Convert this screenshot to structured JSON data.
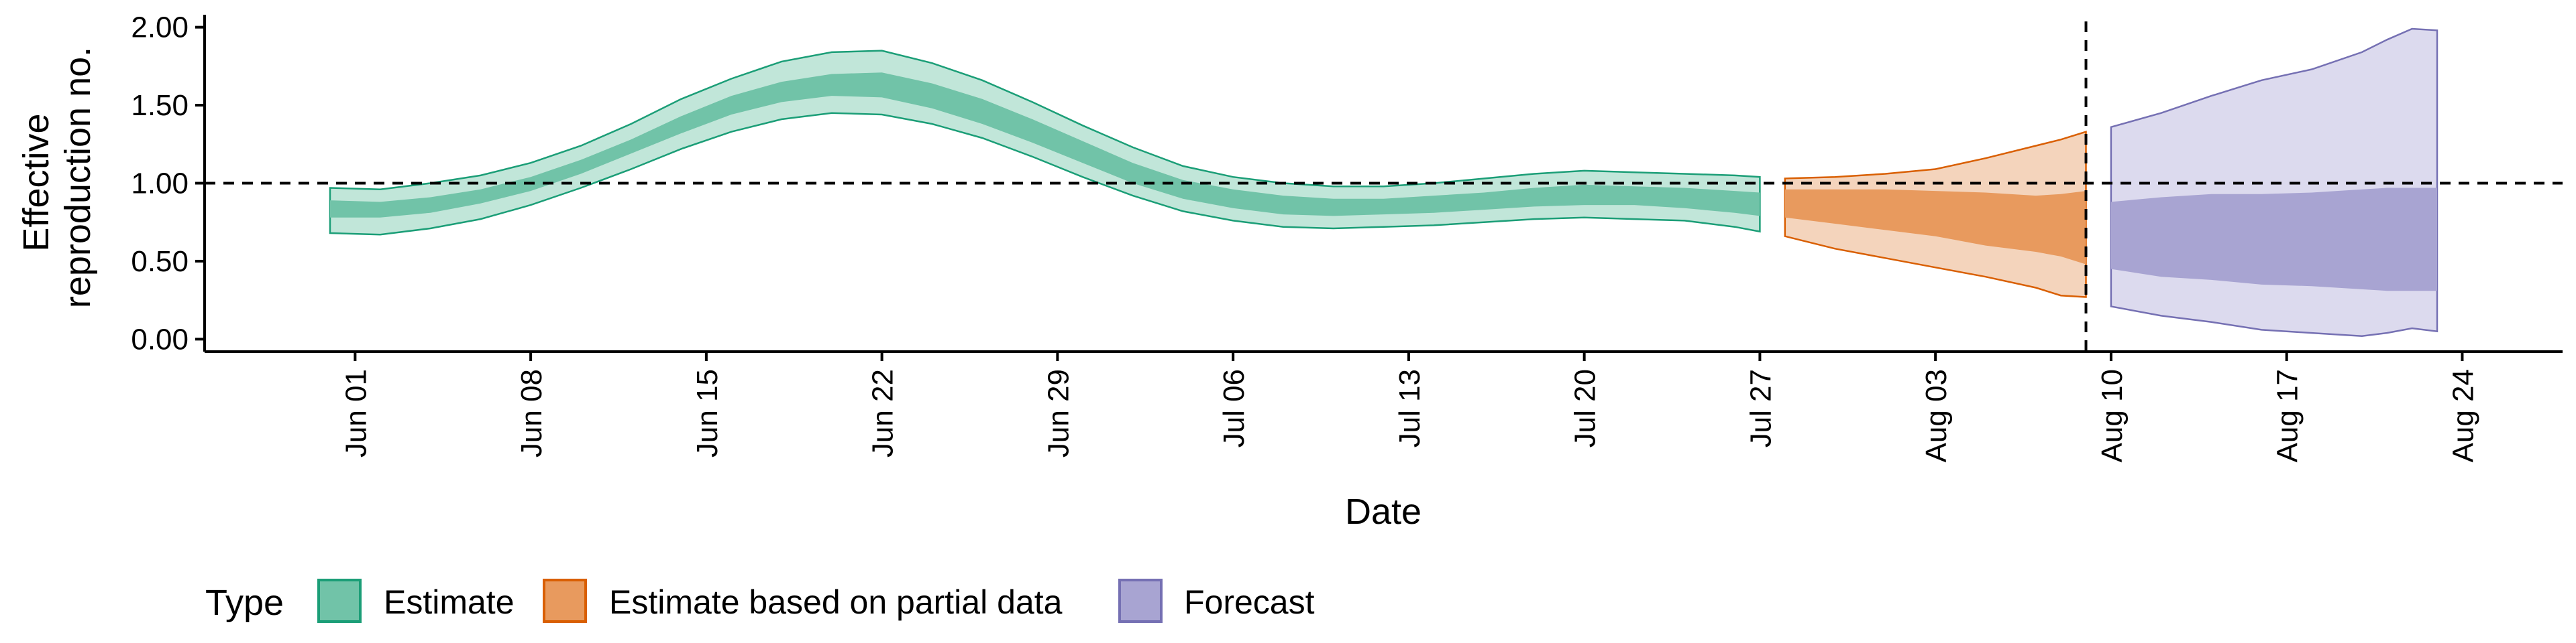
{
  "chart_data": {
    "type": "area",
    "xlabel": "Date",
    "ylabel_lines": [
      "Effective",
      "reproduction no."
    ],
    "y_ticks": [
      0.0,
      0.5,
      1.0,
      1.5,
      2.0
    ],
    "y_tick_labels": [
      "0.00",
      "0.50",
      "1.00",
      "1.50",
      "2.00"
    ],
    "ylim": [
      -0.08,
      2.08
    ],
    "x_ticks": [
      "2020-06-01",
      "2020-06-08",
      "2020-06-15",
      "2020-06-22",
      "2020-06-29",
      "2020-07-06",
      "2020-07-13",
      "2020-07-20",
      "2020-07-27",
      "2020-08-03",
      "2020-08-10",
      "2020-08-17",
      "2020-08-24"
    ],
    "x_tick_labels": [
      "Jun 01",
      "Jun 08",
      "Jun 15",
      "Jun 22",
      "Jun 29",
      "Jul 06",
      "Jul 13",
      "Jul 20",
      "Jul 27",
      "Aug 03",
      "Aug 10",
      "Aug 17",
      "Aug 24"
    ],
    "xlim": [
      "2020-05-26",
      "2020-08-28"
    ],
    "reference_line_y": 1.0,
    "vertical_line_x": "2020-08-09",
    "grid": false,
    "legend": {
      "title": "Type",
      "position": "bottom-left",
      "items": [
        {
          "label": "Estimate",
          "fill": "#71c3a8",
          "stroke": "#1b9e77"
        },
        {
          "label": "Estimate based on partial data",
          "fill": "#e89a5e",
          "stroke": "#d95f02"
        },
        {
          "label": "Forecast",
          "fill": "#a8a4d2",
          "stroke": "#7570b3"
        }
      ]
    },
    "series": [
      {
        "name": "Estimate",
        "outer_color": "#c1e6d9",
        "inner_color": "#71c3a8",
        "stroke": "#1b9e77",
        "points": [
          {
            "x": "2020-05-31",
            "outer": [
              0.68,
              0.97
            ],
            "inner": [
              0.78,
              0.89
            ]
          },
          {
            "x": "2020-06-02",
            "outer": [
              0.67,
              0.96
            ],
            "inner": [
              0.78,
              0.88
            ]
          },
          {
            "x": "2020-06-04",
            "outer": [
              0.71,
              1.0
            ],
            "inner": [
              0.81,
              0.91
            ]
          },
          {
            "x": "2020-06-06",
            "outer": [
              0.77,
              1.05
            ],
            "inner": [
              0.87,
              0.96
            ]
          },
          {
            "x": "2020-06-08",
            "outer": [
              0.86,
              1.13
            ],
            "inner": [
              0.95,
              1.04
            ]
          },
          {
            "x": "2020-06-10",
            "outer": [
              0.97,
              1.24
            ],
            "inner": [
              1.06,
              1.15
            ]
          },
          {
            "x": "2020-06-12",
            "outer": [
              1.09,
              1.38
            ],
            "inner": [
              1.19,
              1.28
            ]
          },
          {
            "x": "2020-06-14",
            "outer": [
              1.22,
              1.54
            ],
            "inner": [
              1.32,
              1.43
            ]
          },
          {
            "x": "2020-06-16",
            "outer": [
              1.33,
              1.67
            ],
            "inner": [
              1.44,
              1.56
            ]
          },
          {
            "x": "2020-06-18",
            "outer": [
              1.41,
              1.78
            ],
            "inner": [
              1.52,
              1.65
            ]
          },
          {
            "x": "2020-06-20",
            "outer": [
              1.45,
              1.84
            ],
            "inner": [
              1.56,
              1.7
            ]
          },
          {
            "x": "2020-06-22",
            "outer": [
              1.44,
              1.85
            ],
            "inner": [
              1.55,
              1.71
            ]
          },
          {
            "x": "2020-06-24",
            "outer": [
              1.38,
              1.77
            ],
            "inner": [
              1.48,
              1.64
            ]
          },
          {
            "x": "2020-06-26",
            "outer": [
              1.29,
              1.66
            ],
            "inner": [
              1.38,
              1.54
            ]
          },
          {
            "x": "2020-06-28",
            "outer": [
              1.17,
              1.52
            ],
            "inner": [
              1.26,
              1.41
            ]
          },
          {
            "x": "2020-06-30",
            "outer": [
              1.04,
              1.37
            ],
            "inner": [
              1.13,
              1.27
            ]
          },
          {
            "x": "2020-07-02",
            "outer": [
              0.92,
              1.23
            ],
            "inner": [
              1.0,
              1.13
            ]
          },
          {
            "x": "2020-07-04",
            "outer": [
              0.82,
              1.11
            ],
            "inner": [
              0.9,
              1.02
            ]
          },
          {
            "x": "2020-07-06",
            "outer": [
              0.76,
              1.04
            ],
            "inner": [
              0.84,
              0.96
            ]
          },
          {
            "x": "2020-07-08",
            "outer": [
              0.72,
              1.0
            ],
            "inner": [
              0.8,
              0.92
            ]
          },
          {
            "x": "2020-07-10",
            "outer": [
              0.71,
              0.98
            ],
            "inner": [
              0.79,
              0.9
            ]
          },
          {
            "x": "2020-07-12",
            "outer": [
              0.72,
              0.98
            ],
            "inner": [
              0.8,
              0.9
            ]
          },
          {
            "x": "2020-07-14",
            "outer": [
              0.73,
              1.0
            ],
            "inner": [
              0.81,
              0.92
            ]
          },
          {
            "x": "2020-07-16",
            "outer": [
              0.75,
              1.03
            ],
            "inner": [
              0.83,
              0.94
            ]
          },
          {
            "x": "2020-07-18",
            "outer": [
              0.77,
              1.06
            ],
            "inner": [
              0.85,
              0.97
            ]
          },
          {
            "x": "2020-07-20",
            "outer": [
              0.78,
              1.08
            ],
            "inner": [
              0.86,
              0.99
            ]
          },
          {
            "x": "2020-07-22",
            "outer": [
              0.77,
              1.07
            ],
            "inner": [
              0.86,
              0.98
            ]
          },
          {
            "x": "2020-07-24",
            "outer": [
              0.76,
              1.06
            ],
            "inner": [
              0.84,
              0.97
            ]
          },
          {
            "x": "2020-07-26",
            "outer": [
              0.72,
              1.05
            ],
            "inner": [
              0.81,
              0.95
            ]
          },
          {
            "x": "2020-07-27",
            "outer": [
              0.69,
              1.04
            ],
            "inner": [
              0.79,
              0.94
            ]
          }
        ]
      },
      {
        "name": "Estimate based on partial data",
        "outer_color": "#f4d4bc",
        "inner_color": "#e89a5e",
        "stroke": "#d95f02",
        "points": [
          {
            "x": "2020-07-28",
            "outer": [
              0.66,
              1.03
            ],
            "inner": [
              0.78,
              0.96
            ]
          },
          {
            "x": "2020-07-30",
            "outer": [
              0.58,
              1.04
            ],
            "inner": [
              0.74,
              0.96
            ]
          },
          {
            "x": "2020-08-01",
            "outer": [
              0.52,
              1.06
            ],
            "inner": [
              0.7,
              0.96
            ]
          },
          {
            "x": "2020-08-03",
            "outer": [
              0.46,
              1.09
            ],
            "inner": [
              0.66,
              0.95
            ]
          },
          {
            "x": "2020-08-05",
            "outer": [
              0.4,
              1.16
            ],
            "inner": [
              0.6,
              0.94
            ]
          },
          {
            "x": "2020-08-07",
            "outer": [
              0.33,
              1.24
            ],
            "inner": [
              0.56,
              0.92
            ]
          },
          {
            "x": "2020-08-08",
            "outer": [
              0.28,
              1.28
            ],
            "inner": [
              0.53,
              0.93
            ]
          },
          {
            "x": "2020-08-09",
            "outer": [
              0.27,
              1.33
            ],
            "inner": [
              0.48,
              0.95
            ]
          }
        ]
      },
      {
        "name": "Forecast",
        "outer_color": "#dcdaee",
        "inner_color": "#a8a4d2",
        "stroke": "#7570b3",
        "points": [
          {
            "x": "2020-08-10",
            "outer": [
              0.21,
              1.36
            ],
            "inner": [
              0.45,
              0.88
            ]
          },
          {
            "x": "2020-08-12",
            "outer": [
              0.15,
              1.45
            ],
            "inner": [
              0.4,
              0.91
            ]
          },
          {
            "x": "2020-08-14",
            "outer": [
              0.11,
              1.56
            ],
            "inner": [
              0.38,
              0.93
            ]
          },
          {
            "x": "2020-08-16",
            "outer": [
              0.06,
              1.66
            ],
            "inner": [
              0.35,
              0.93
            ]
          },
          {
            "x": "2020-08-18",
            "outer": [
              0.04,
              1.73
            ],
            "inner": [
              0.34,
              0.94
            ]
          },
          {
            "x": "2020-08-20",
            "outer": [
              0.02,
              1.84
            ],
            "inner": [
              0.32,
              0.96
            ]
          },
          {
            "x": "2020-08-21",
            "outer": [
              0.04,
              1.92
            ],
            "inner": [
              0.31,
              0.97
            ]
          },
          {
            "x": "2020-08-22",
            "outer": [
              0.07,
              1.99
            ],
            "inner": [
              0.31,
              0.97
            ]
          },
          {
            "x": "2020-08-23",
            "outer": [
              0.05,
              1.98
            ],
            "inner": [
              0.31,
              0.97
            ]
          }
        ]
      }
    ]
  }
}
